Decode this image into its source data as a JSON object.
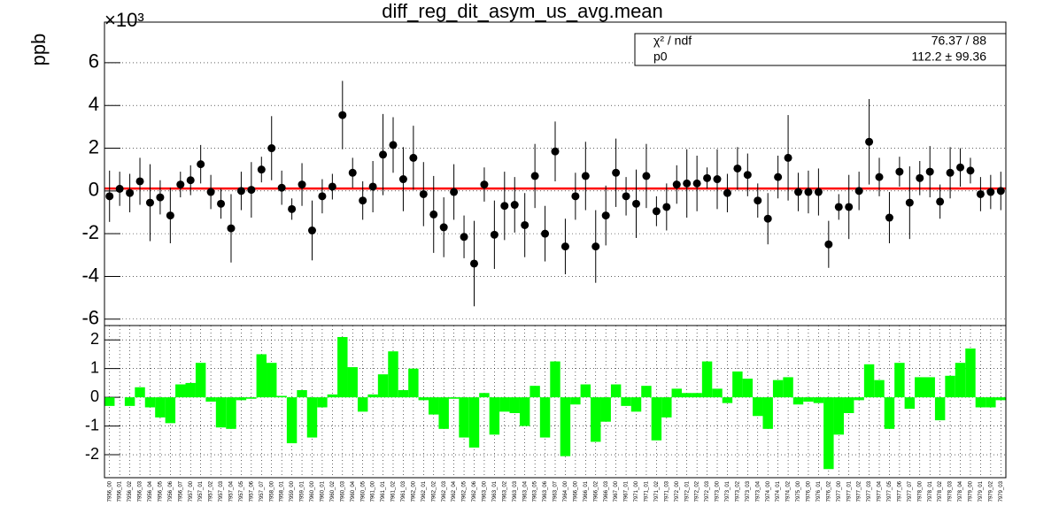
{
  "chart_data": [
    {
      "type": "errorbar",
      "title": "diff_reg_dit_asym_us_avg.mean",
      "y_label": "ppb",
      "axis_multiplier": "×10³",
      "values": [
        -250,
        100,
        -100,
        450,
        -550,
        -300,
        -1150,
        300,
        500,
        1250,
        -50,
        -600,
        -1750,
        0,
        50,
        1000,
        2000,
        150,
        -850,
        300,
        -1850,
        -250,
        200,
        3550,
        850,
        -450,
        200,
        1700,
        2150,
        550,
        1550,
        -150,
        -1100,
        -1700,
        -50,
        -2150,
        -3400,
        300,
        -2050,
        -700,
        -650,
        -1600,
        700,
        -2000,
        1850,
        -2600,
        -250,
        700,
        -2600,
        -1150,
        850,
        -250,
        -600,
        700,
        -950,
        -750,
        300,
        350,
        350,
        600,
        550,
        -100,
        1050,
        750,
        -450,
        -1300,
        650,
        1550,
        -50,
        -50,
        -50,
        -2500,
        -750,
        -750,
        0,
        2300,
        650,
        -1250,
        900,
        -550,
        600,
        900,
        -500,
        850,
        1100,
        950,
        -150,
        -50,
        0
      ],
      "errors": [
        1200,
        800,
        900,
        1100,
        1800,
        800,
        1300,
        600,
        700,
        900,
        800,
        700,
        1600,
        900,
        1300,
        600,
        1500,
        800,
        500,
        1000,
        1400,
        800,
        600,
        1600,
        700,
        900,
        1200,
        1900,
        1300,
        1500,
        1500,
        1500,
        1800,
        1400,
        1300,
        1000,
        2000,
        800,
        1600,
        1600,
        1300,
        1500,
        1500,
        1300,
        1400,
        1300,
        1100,
        1600,
        1700,
        1400,
        1600,
        900,
        1600,
        1500,
        700,
        1100,
        900,
        1600,
        1300,
        500,
        1400,
        900,
        1000,
        1000,
        800,
        1200,
        1000,
        2000,
        900,
        1000,
        1100,
        1100,
        600,
        1500,
        900,
        2000,
        900,
        1200,
        700,
        1700,
        800,
        1200,
        800,
        1200,
        900,
        600,
        800,
        800,
        900
      ],
      "color": "#000000",
      "fit": {
        "value": 112.2,
        "color": "#ff0000"
      },
      "stats": [
        {
          "name": "χ² / ndf",
          "text": "76.37 / 88"
        },
        {
          "name": "p0",
          "text": "112.2 ± 99.36"
        }
      ],
      "ylim": [
        -6300,
        7900
      ],
      "yticks": [
        {
          "value": -6000,
          "label": "-6"
        },
        {
          "value": -4000,
          "label": "-4"
        },
        {
          "value": -2000,
          "label": "-2"
        },
        {
          "value": 0,
          "label": "0"
        },
        {
          "value": 2000,
          "label": "2"
        },
        {
          "value": 4000,
          "label": "4"
        },
        {
          "value": 6000,
          "label": "6"
        }
      ],
      "grid": true
    },
    {
      "type": "bar",
      "color": "#00ff00",
      "categories": [
        "7956_00",
        "7956_01",
        "7956_02",
        "7956_03",
        "7956_04",
        "7956_05",
        "7956_06",
        "7956_07",
        "7957_00",
        "7957_01",
        "7957_02",
        "7957_03",
        "7957_04",
        "7957_05",
        "7957_06",
        "7957_07",
        "7958_00",
        "7958_01",
        "7959_00",
        "7959_01",
        "7960_00",
        "7960_01",
        "7960_02",
        "7960_03",
        "7960_04",
        "7960_05",
        "7961_00",
        "7961_01",
        "7961_02",
        "7961_03",
        "7962_00",
        "7962_01",
        "7962_02",
        "7962_03",
        "7962_04",
        "7962_05",
        "7962_06",
        "7963_00",
        "7963_01",
        "7963_02",
        "7963_03",
        "7963_04",
        "7963_05",
        "7963_06",
        "7963_07",
        "7964_00",
        "7966_00",
        "7966_01",
        "7966_02",
        "7966_03",
        "7967_00",
        "7967_01",
        "7971_00",
        "7971_01",
        "7971_02",
        "7971_03",
        "7972_00",
        "7972_01",
        "7972_02",
        "7972_03",
        "7973_00",
        "7973_01",
        "7973_02",
        "7973_03",
        "7973_04",
        "7974_00",
        "7974_01",
        "7974_02",
        "7975_00",
        "7976_00",
        "7976_01",
        "7976_02",
        "7977_00",
        "7977_01",
        "7977_02",
        "7977_03",
        "7977_04",
        "7977_05",
        "7977_06",
        "7977_07",
        "7978_00",
        "7978_01",
        "7978_02",
        "7978_03",
        "7978_04",
        "7979_00",
        "7979_01",
        "7979_02",
        "7979_03"
      ],
      "values": [
        -0.3,
        0,
        -0.3,
        0.35,
        -0.35,
        -0.7,
        -0.9,
        0.45,
        0.5,
        1.2,
        -0.15,
        -1.05,
        -1.1,
        -0.1,
        -0.05,
        1.5,
        1.2,
        0.05,
        -1.6,
        0.25,
        -1.4,
        -0.35,
        0.1,
        2.1,
        1.05,
        -0.5,
        0.1,
        0.8,
        1.6,
        0.25,
        1.0,
        -0.1,
        -0.6,
        -1.1,
        -0.05,
        -1.4,
        -1.75,
        0.15,
        -1.3,
        -0.5,
        -0.55,
        -1.0,
        0.4,
        -1.4,
        1.25,
        -2.05,
        -0.25,
        0.45,
        -1.55,
        -0.85,
        0.45,
        -0.3,
        -0.5,
        0.4,
        -1.5,
        -0.7,
        0.3,
        0.15,
        0.15,
        1.25,
        0.3,
        -0.2,
        0.9,
        0.65,
        -0.65,
        -1.1,
        0.6,
        0.7,
        -0.25,
        -0.15,
        -0.2,
        -2.5,
        -1.3,
        -0.55,
        -0.1,
        1.15,
        0.6,
        -1.1,
        1.2,
        -0.4,
        0.7,
        0.7,
        -0.8,
        0.75,
        1.2,
        1.7,
        -0.35,
        -0.35,
        -0.1
      ],
      "ylim": [
        -2.8,
        2.5
      ],
      "yticks": [
        -2,
        -1,
        0,
        1,
        2
      ],
      "grid": true
    }
  ]
}
